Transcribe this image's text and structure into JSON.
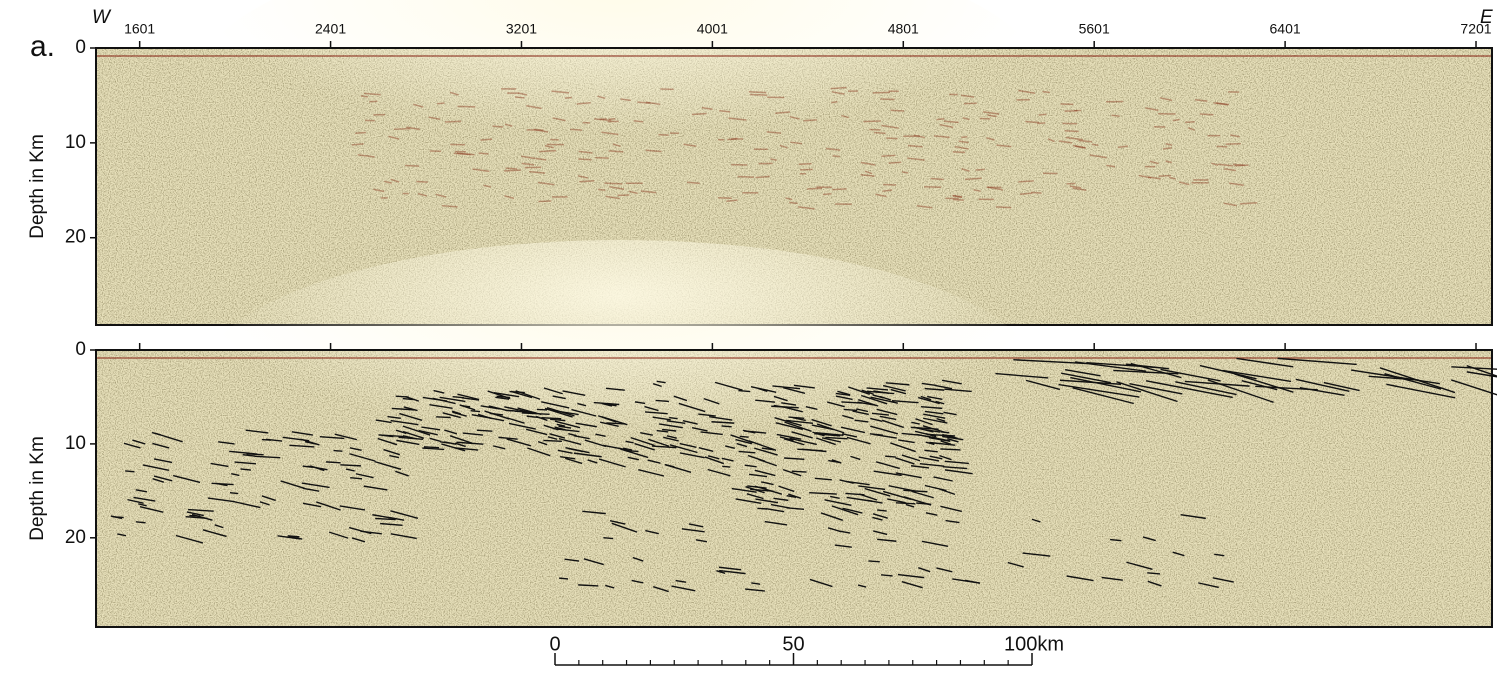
{
  "panel_label": "a.",
  "west_label": "W",
  "east_label": "E",
  "chart_data": [
    {
      "type": "seismic-section",
      "y_label": "Depth in Km",
      "xticks": [
        1601,
        2401,
        3201,
        4001,
        4801,
        5601,
        6401,
        7201
      ],
      "xlim": [
        1418,
        7268
      ],
      "xtick_labels": true,
      "yticks": [
        0,
        10,
        20
      ],
      "ylim": [
        0,
        29.2
      ],
      "interpreted": false
    },
    {
      "type": "seismic-section",
      "y_label": "Depth in Km",
      "xticks": [
        1601,
        2401,
        3201,
        4001,
        4801,
        5601,
        6401,
        7201
      ],
      "xlim": [
        1418,
        7268
      ],
      "xtick_labels": false,
      "yticks": [
        0,
        10,
        20
      ],
      "ylim": [
        0,
        29.5
      ],
      "interpreted": true
    }
  ],
  "scale_bar": {
    "ticks": [
      0,
      50,
      {
        "value": 100,
        "label": "100km"
      }
    ]
  }
}
